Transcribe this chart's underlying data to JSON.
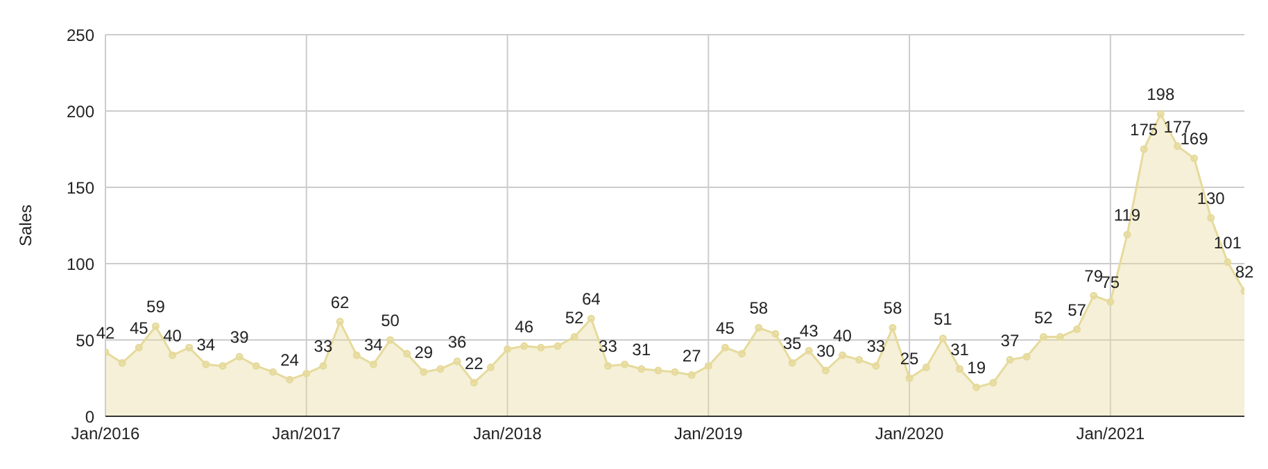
{
  "chart_data": {
    "type": "area",
    "ylabel": "Sales",
    "x": [
      "2016-01",
      "2016-02",
      "2016-03",
      "2016-04",
      "2016-05",
      "2016-06",
      "2016-07",
      "2016-08",
      "2016-09",
      "2016-10",
      "2016-11",
      "2016-12",
      "2017-01",
      "2017-02",
      "2017-03",
      "2017-04",
      "2017-05",
      "2017-06",
      "2017-07",
      "2017-08",
      "2017-09",
      "2017-10",
      "2017-11",
      "2017-12",
      "2018-01",
      "2018-02",
      "2018-03",
      "2018-04",
      "2018-05",
      "2018-06",
      "2018-07",
      "2018-08",
      "2018-09",
      "2018-10",
      "2018-11",
      "2018-12",
      "2019-01",
      "2019-02",
      "2019-03",
      "2019-04",
      "2019-05",
      "2019-06",
      "2019-07",
      "2019-08",
      "2019-09",
      "2019-10",
      "2019-11",
      "2019-12",
      "2020-01",
      "2020-02",
      "2020-03",
      "2020-04",
      "2020-05",
      "2020-06",
      "2020-07",
      "2020-08",
      "2020-09",
      "2020-10",
      "2020-11",
      "2020-12",
      "2021-01",
      "2021-02",
      "2021-03",
      "2021-04",
      "2021-05",
      "2021-06",
      "2021-07",
      "2021-08",
      "2021-09"
    ],
    "series": [
      {
        "color": "#e6da9c",
        "values": [
          42,
          35,
          45,
          59,
          40,
          45,
          34,
          33,
          39,
          33,
          29,
          24,
          28,
          33,
          62,
          40,
          34,
          50,
          41,
          29,
          31,
          36,
          22,
          32,
          44,
          46,
          45,
          46,
          52,
          64,
          33,
          34,
          31,
          30,
          29,
          27,
          33,
          45,
          41,
          58,
          54,
          35,
          43,
          30,
          40,
          37,
          33,
          58,
          25,
          32,
          51,
          31,
          19,
          22,
          37,
          39,
          52,
          52,
          57,
          79,
          75,
          119,
          175,
          198,
          177,
          169,
          130,
          101,
          82
        ],
        "value_labels": [
          "42",
          null,
          "45",
          "59",
          "40",
          null,
          "34",
          null,
          "39",
          null,
          null,
          "24",
          null,
          "33",
          "62",
          null,
          "34",
          "50",
          null,
          "29",
          null,
          "36",
          "22",
          null,
          null,
          "46",
          null,
          null,
          "52",
          "64",
          "33",
          null,
          "31",
          null,
          null,
          "27",
          null,
          "45",
          null,
          "58",
          null,
          "35",
          "43",
          "30",
          "40",
          null,
          "33",
          "58",
          "25",
          null,
          "51",
          "31",
          "19",
          null,
          "37",
          null,
          "52",
          null,
          "57",
          "79",
          "75",
          "119",
          "175",
          "198",
          "177",
          "169",
          "130",
          "101",
          "82"
        ]
      }
    ],
    "xlim": [
      "2016-01",
      "2021-09"
    ],
    "xticks": [
      {
        "value": "2016-01",
        "label": "Jan/2016"
      },
      {
        "value": "2017-01",
        "label": "Jan/2017"
      },
      {
        "value": "2018-01",
        "label": "Jan/2018"
      },
      {
        "value": "2019-01",
        "label": "Jan/2019"
      },
      {
        "value": "2020-01",
        "label": "Jan/2020"
      },
      {
        "value": "2021-01",
        "label": "Jan/2021"
      }
    ],
    "ylim": [
      0,
      250
    ],
    "yticks": [
      0,
      50,
      100,
      150,
      200,
      250
    ],
    "grid": true,
    "marker": "circle",
    "legend": false
  }
}
